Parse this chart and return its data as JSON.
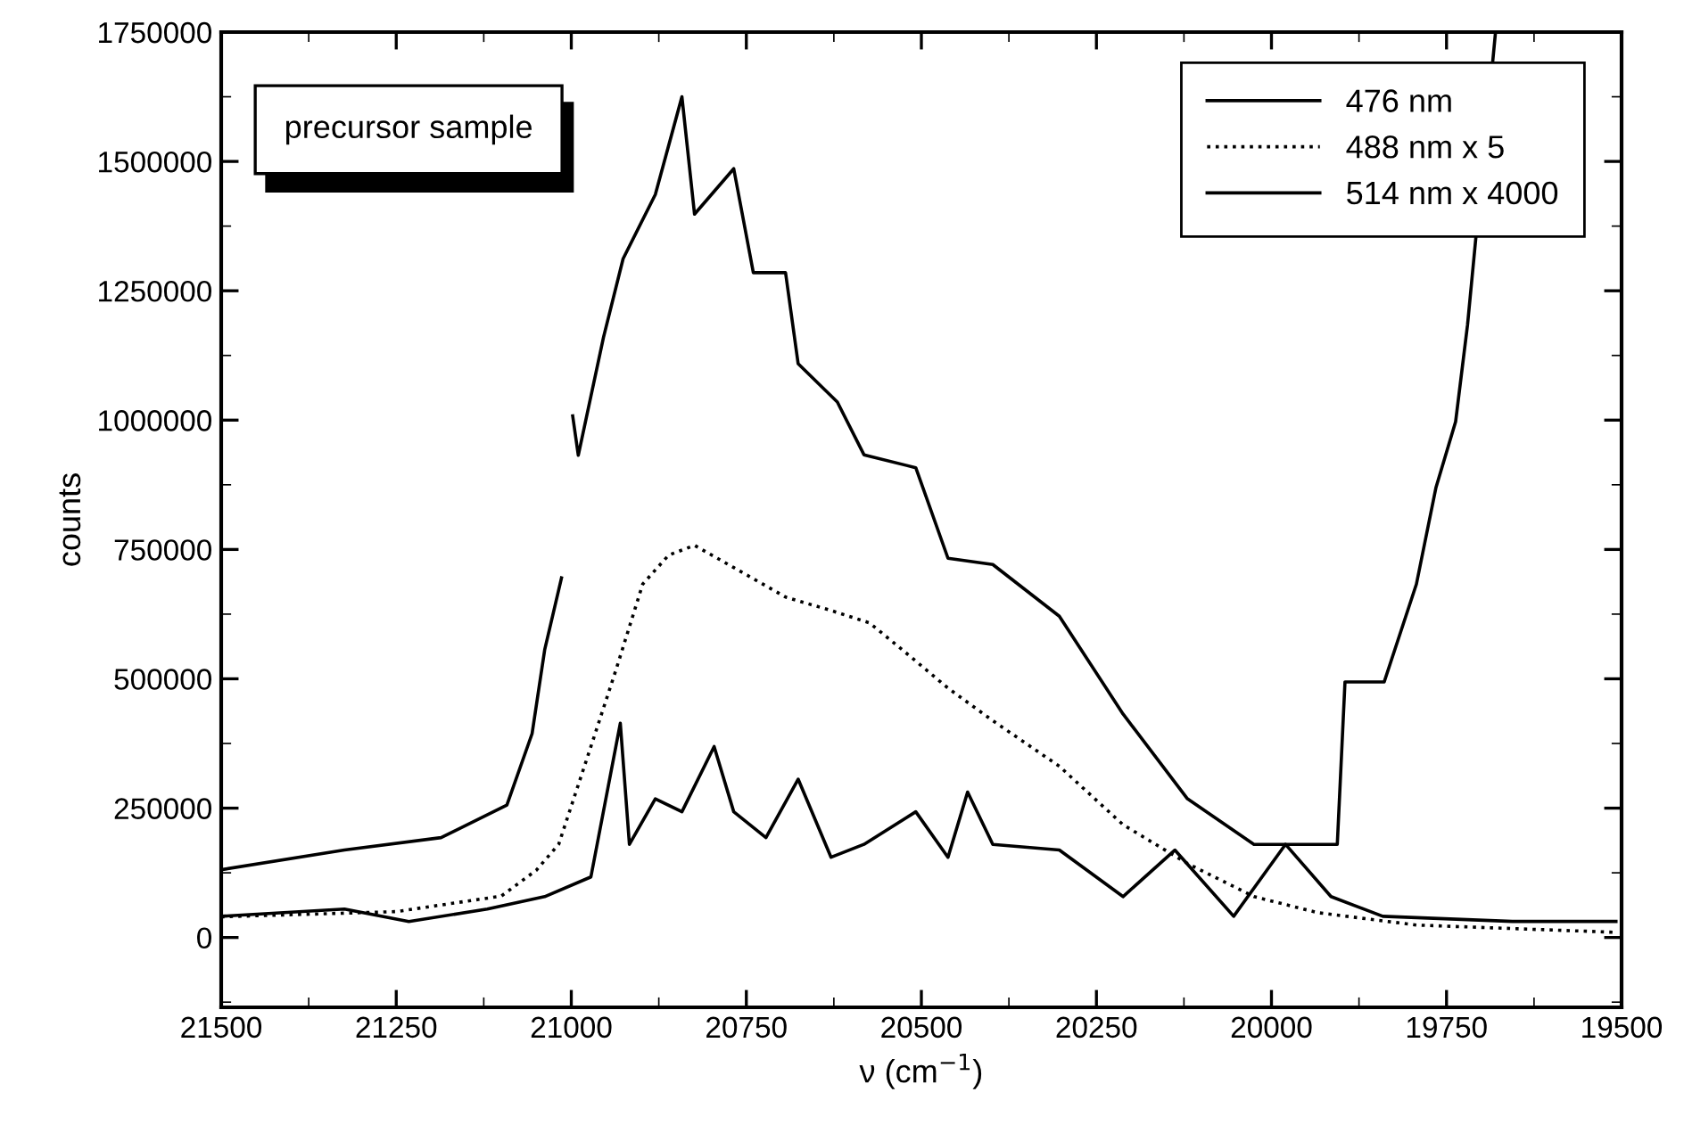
{
  "chart_data": {
    "type": "line",
    "xlabel": "ν (cm$^{−1}$)",
    "ylabel": "counts",
    "xlim": [
      21500,
      19500
    ],
    "xticks": [
      21500,
      21250,
      21000,
      20750,
      20500,
      20250,
      20000,
      19750,
      19500
    ],
    "ylim": [
      -135000,
      1750000
    ],
    "yticks": [
      0,
      250000,
      500000,
      750000,
      1000000,
      1250000,
      1500000,
      1750000
    ],
    "grid": false,
    "legend": "top right",
    "marker": "none",
    "annotations": [
      "precursor sample"
    ],
    "series": [
      {
        "name": "476 nm",
        "color": "#000000",
        "line_style": "solid",
        "x": [
          21500,
          21324,
          21186,
          21092,
          21056,
          21038,
          21014,
          21005,
          20998,
          20990,
          20954,
          20926,
          20880,
          20842,
          20824,
          20768,
          20740,
          20694,
          20676,
          20620,
          20582,
          20508,
          20462,
          20398,
          20303,
          20212,
          20120,
          20025,
          19951,
          19906,
          19895,
          19839,
          19793,
          19765,
          19737,
          19720,
          19680
        ],
        "values": [
          131000,
          169000,
          193000,
          256000,
          394000,
          556000,
          695000,
          null,
          1008000,
          932000,
          1160000,
          1312000,
          1436000,
          1625000,
          1398000,
          1486000,
          1285000,
          1285000,
          1109000,
          1035000,
          933000,
          908000,
          733000,
          721000,
          621000,
          432000,
          268000,
          180000,
          180000,
          180000,
          494000,
          494000,
          683000,
          870000,
          997000,
          1184000,
          1750000
        ]
      },
      {
        "name": "488 nm x 5",
        "color": "#000000",
        "line_style": "dotted",
        "x": [
          21500,
          21250,
          21100,
          21050,
          21018,
          20972,
          20936,
          20898,
          20861,
          20824,
          20768,
          20694,
          20629,
          20574,
          20528,
          20462,
          20398,
          20303,
          20212,
          20120,
          20025,
          19934,
          19793,
          19508
        ],
        "values": [
          40000,
          50000,
          80000,
          130000,
          180000,
          369000,
          518000,
          683000,
          739000,
          758000,
          715000,
          658000,
          632000,
          608000,
          557000,
          482000,
          419000,
          331000,
          218000,
          143000,
          79000,
          48000,
          24000,
          10000
        ]
      },
      {
        "name": "514 nm x 4000",
        "color": "#000000",
        "line_style": "solid",
        "x": [
          21500,
          21324,
          21232,
          21120,
          21038,
          20972,
          20930,
          20917,
          20880,
          20842,
          20796,
          20768,
          20722,
          20676,
          20629,
          20582,
          20508,
          20462,
          20434,
          20398,
          20303,
          20212,
          20138,
          20054,
          19980,
          19915,
          19841,
          19656,
          19508
        ],
        "values": [
          41000,
          55000,
          31000,
          55000,
          79000,
          117000,
          414000,
          180000,
          268000,
          243000,
          369000,
          243000,
          193000,
          306000,
          155000,
          180000,
          243000,
          155000,
          281000,
          180000,
          169000,
          79000,
          169000,
          41000,
          180000,
          79000,
          41000,
          31000,
          31000
        ]
      }
    ]
  }
}
